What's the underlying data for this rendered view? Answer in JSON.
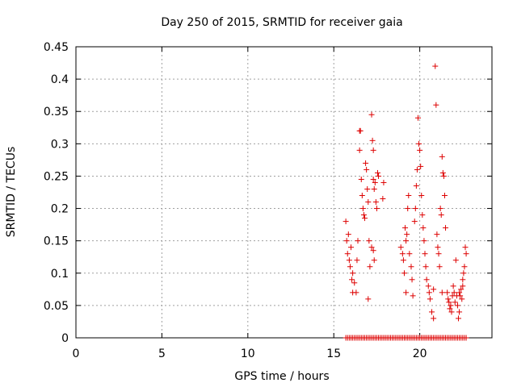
{
  "chart_data": {
    "type": "scatter",
    "title": "Day 250 of 2015, SRMTID for receiver gaia",
    "xlabel": "GPS time / hours",
    "ylabel": "SRMTID / TECUs",
    "xlim": [
      0,
      24.2
    ],
    "ylim": [
      0,
      0.45
    ],
    "grid": true,
    "marker": "+",
    "xticks": [
      0,
      5,
      10,
      15,
      20
    ],
    "xtick_labels": [
      "0",
      "5",
      "10",
      "15",
      "20"
    ],
    "yticks": [
      0,
      0.05,
      0.1,
      0.15,
      0.2,
      0.25,
      0.3,
      0.35,
      0.4,
      0.45
    ],
    "ytick_labels": [
      "0",
      "0.05",
      "0.1",
      "0.15",
      "0.2",
      "0.25",
      "0.3",
      "0.35",
      "0.4",
      "0.45"
    ],
    "colors": {
      "series": "#dd0000",
      "grid": "#a0a0a0",
      "axes": "#000000"
    },
    "series": [
      {
        "name": "SRMTID",
        "points": [
          [
            15.7,
            0.18
          ],
          [
            15.75,
            0.15
          ],
          [
            15.8,
            0.13
          ],
          [
            15.85,
            0.16
          ],
          [
            15.9,
            0.12
          ],
          [
            15.95,
            0.11
          ],
          [
            16.0,
            0.14
          ],
          [
            16.05,
            0.09
          ],
          [
            16.1,
            0.1
          ],
          [
            16.1,
            0.07
          ],
          [
            16.2,
            0.085
          ],
          [
            16.3,
            0.07
          ],
          [
            16.35,
            0.12
          ],
          [
            16.4,
            0.15
          ],
          [
            16.5,
            0.32
          ],
          [
            16.55,
            0.32
          ],
          [
            16.5,
            0.29
          ],
          [
            16.6,
            0.245
          ],
          [
            16.65,
            0.22
          ],
          [
            16.7,
            0.2
          ],
          [
            16.75,
            0.19
          ],
          [
            16.8,
            0.185
          ],
          [
            16.85,
            0.27
          ],
          [
            16.9,
            0.26
          ],
          [
            16.95,
            0.23
          ],
          [
            17.0,
            0.21
          ],
          [
            17.05,
            0.15
          ],
          [
            17.1,
            0.11
          ],
          [
            17.0,
            0.06
          ],
          [
            17.2,
            0.345
          ],
          [
            17.25,
            0.305
          ],
          [
            17.3,
            0.29
          ],
          [
            17.3,
            0.245
          ],
          [
            17.35,
            0.23
          ],
          [
            17.4,
            0.24
          ],
          [
            17.45,
            0.21
          ],
          [
            17.5,
            0.2
          ],
          [
            17.55,
            0.255
          ],
          [
            17.6,
            0.25
          ],
          [
            17.3,
            0.135
          ],
          [
            17.35,
            0.12
          ],
          [
            17.2,
            0.14
          ],
          [
            17.9,
            0.24
          ],
          [
            17.85,
            0.215
          ],
          [
            18.9,
            0.14
          ],
          [
            19.0,
            0.13
          ],
          [
            19.05,
            0.12
          ],
          [
            19.1,
            0.1
          ],
          [
            19.15,
            0.17
          ],
          [
            19.2,
            0.15
          ],
          [
            19.25,
            0.16
          ],
          [
            19.3,
            0.2
          ],
          [
            19.35,
            0.22
          ],
          [
            19.2,
            0.07
          ],
          [
            19.4,
            0.13
          ],
          [
            19.5,
            0.11
          ],
          [
            19.55,
            0.09
          ],
          [
            19.6,
            0.065
          ],
          [
            19.7,
            0.18
          ],
          [
            19.75,
            0.2
          ],
          [
            19.8,
            0.235
          ],
          [
            19.85,
            0.26
          ],
          [
            19.9,
            0.34
          ],
          [
            19.95,
            0.3
          ],
          [
            20.0,
            0.29
          ],
          [
            20.05,
            0.265
          ],
          [
            20.1,
            0.22
          ],
          [
            20.15,
            0.19
          ],
          [
            20.2,
            0.17
          ],
          [
            20.25,
            0.15
          ],
          [
            20.3,
            0.13
          ],
          [
            20.35,
            0.11
          ],
          [
            20.4,
            0.09
          ],
          [
            20.5,
            0.08
          ],
          [
            20.55,
            0.07
          ],
          [
            20.6,
            0.06
          ],
          [
            20.7,
            0.04
          ],
          [
            20.8,
            0.075
          ],
          [
            20.9,
            0.42
          ],
          [
            20.95,
            0.36
          ],
          [
            21.0,
            0.16
          ],
          [
            21.05,
            0.14
          ],
          [
            21.1,
            0.13
          ],
          [
            21.15,
            0.11
          ],
          [
            21.2,
            0.2
          ],
          [
            21.25,
            0.19
          ],
          [
            21.3,
            0.28
          ],
          [
            21.35,
            0.255
          ],
          [
            21.4,
            0.25
          ],
          [
            21.45,
            0.22
          ],
          [
            21.5,
            0.17
          ],
          [
            21.3,
            0.07
          ],
          [
            20.8,
            0.03
          ],
          [
            21.6,
            0.07
          ],
          [
            21.65,
            0.06
          ],
          [
            21.7,
            0.055
          ],
          [
            21.75,
            0.045
          ],
          [
            21.8,
            0.05
          ],
          [
            21.85,
            0.04
          ],
          [
            21.9,
            0.065
          ],
          [
            21.95,
            0.08
          ],
          [
            22.0,
            0.07
          ],
          [
            22.05,
            0.055
          ],
          [
            22.1,
            0.12
          ],
          [
            22.15,
            0.065
          ],
          [
            22.2,
            0.05
          ],
          [
            22.25,
            0.03
          ],
          [
            22.3,
            0.04
          ],
          [
            22.35,
            0.065
          ],
          [
            22.4,
            0.075
          ],
          [
            22.45,
            0.06
          ],
          [
            22.5,
            0.08
          ],
          [
            22.55,
            0.1
          ],
          [
            22.6,
            0.11
          ],
          [
            22.65,
            0.14
          ],
          [
            22.7,
            0.13
          ],
          [
            22.5,
            0.09
          ],
          [
            22.3,
            0.07
          ],
          [
            15.7,
            0
          ],
          [
            15.8,
            0
          ],
          [
            15.9,
            0
          ],
          [
            16.0,
            0
          ],
          [
            16.1,
            0
          ],
          [
            16.2,
            0
          ],
          [
            16.3,
            0
          ],
          [
            16.4,
            0
          ],
          [
            16.5,
            0
          ],
          [
            16.6,
            0
          ],
          [
            16.7,
            0
          ],
          [
            16.8,
            0
          ],
          [
            16.9,
            0
          ],
          [
            17.0,
            0
          ],
          [
            17.1,
            0
          ],
          [
            17.2,
            0
          ],
          [
            17.3,
            0
          ],
          [
            17.4,
            0
          ],
          [
            17.5,
            0
          ],
          [
            17.6,
            0
          ],
          [
            17.7,
            0
          ],
          [
            17.8,
            0
          ],
          [
            17.9,
            0
          ],
          [
            18.0,
            0
          ],
          [
            18.1,
            0
          ],
          [
            18.2,
            0
          ],
          [
            18.3,
            0
          ],
          [
            18.4,
            0
          ],
          [
            18.5,
            0
          ],
          [
            18.6,
            0
          ],
          [
            18.7,
            0
          ],
          [
            18.8,
            0
          ],
          [
            18.9,
            0
          ],
          [
            19.0,
            0
          ],
          [
            19.1,
            0
          ],
          [
            19.2,
            0
          ],
          [
            19.3,
            0
          ],
          [
            19.4,
            0
          ],
          [
            19.5,
            0
          ],
          [
            19.6,
            0
          ],
          [
            19.7,
            0
          ],
          [
            19.8,
            0
          ],
          [
            19.9,
            0
          ],
          [
            20.0,
            0
          ],
          [
            20.1,
            0
          ],
          [
            20.2,
            0
          ],
          [
            20.3,
            0
          ],
          [
            20.4,
            0
          ],
          [
            20.5,
            0
          ],
          [
            20.6,
            0
          ],
          [
            20.7,
            0
          ],
          [
            20.8,
            0
          ],
          [
            20.9,
            0
          ],
          [
            21.0,
            0
          ],
          [
            21.1,
            0
          ],
          [
            21.2,
            0
          ],
          [
            21.3,
            0
          ],
          [
            21.4,
            0
          ],
          [
            21.5,
            0
          ],
          [
            21.6,
            0
          ],
          [
            21.7,
            0
          ],
          [
            21.8,
            0
          ],
          [
            21.9,
            0
          ],
          [
            22.0,
            0
          ],
          [
            22.1,
            0
          ],
          [
            22.2,
            0
          ],
          [
            22.3,
            0
          ],
          [
            22.4,
            0
          ],
          [
            22.5,
            0
          ],
          [
            22.6,
            0
          ],
          [
            22.7,
            0
          ]
        ]
      }
    ]
  }
}
